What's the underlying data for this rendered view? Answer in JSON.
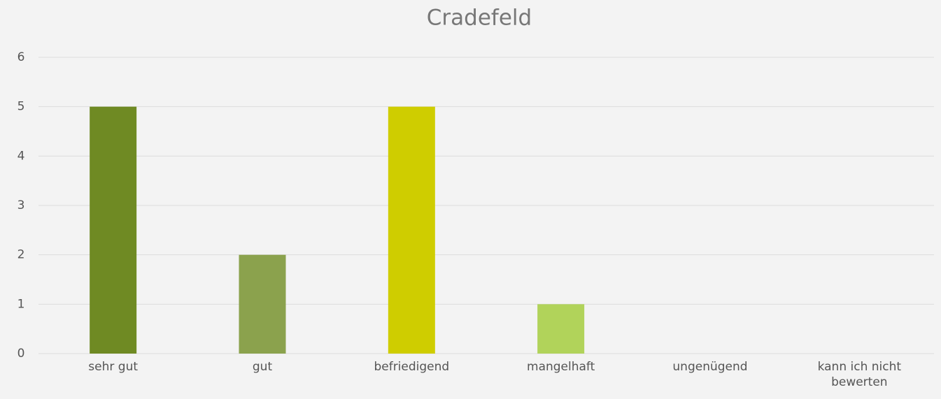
{
  "chart_data": {
    "type": "bar",
    "title": "Cradefeld",
    "categories": [
      "sehr gut",
      "gut",
      "befriedigend",
      "mangelhaft",
      "ungenügend",
      "kann ich nicht bewerten"
    ],
    "values": [
      5,
      2,
      5,
      1,
      0,
      0
    ],
    "colors": [
      "#6f8a23",
      "#8ba24d",
      "#cfcd00",
      "#b1d35a",
      "#6f8a23",
      "#8ba24d"
    ],
    "ylim": [
      0,
      6
    ],
    "yticks": [
      0,
      1,
      2,
      3,
      4,
      5,
      6
    ],
    "grid": true
  }
}
